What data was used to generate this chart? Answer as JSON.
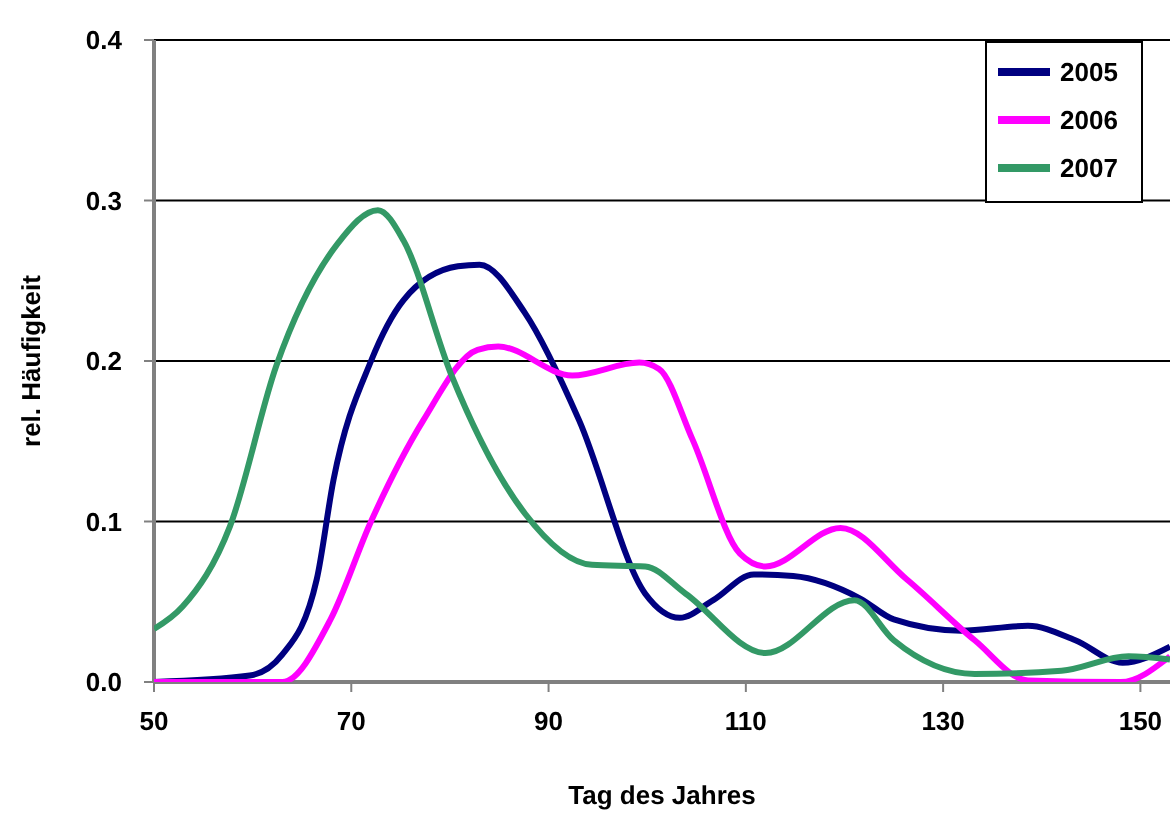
{
  "chart_data": {
    "type": "line",
    "xlabel": "Tag des Jahres",
    "ylabel": "rel. Häufigkeit",
    "xlim": [
      50,
      153
    ],
    "xticks": [
      50,
      70,
      90,
      110,
      130,
      150
    ],
    "ylim": [
      0,
      0.4
    ],
    "yticks": [
      {
        "value": 0,
        "label": "0.0"
      },
      {
        "value": 0.1,
        "label": "0.1"
      },
      {
        "value": 0.2,
        "label": "0.2"
      },
      {
        "value": 0.3,
        "label": "0.3"
      },
      {
        "value": 0.4,
        "label": "0.4"
      }
    ],
    "grid": "y",
    "legend": "top right",
    "marker": "none",
    "line_style": "solid",
    "series": [
      {
        "name": "2005",
        "color": "#000080",
        "x": [
          50,
          59.7,
          63,
          66.5,
          68.2,
          72,
          75.3,
          80.8,
          83,
          87.6,
          93.1,
          99.8,
          103.3,
          106.7,
          110.8,
          114.8,
          121.6,
          125,
          131.8,
          138.6,
          143.4,
          148.2,
          153
        ],
        "values": [
          0,
          0.004,
          0.017,
          0.064,
          0.126,
          0.2,
          0.238,
          0.259,
          0.26,
          0.23,
          0.163,
          0.055,
          0.04,
          0.051,
          0.067,
          0.066,
          0.052,
          0.039,
          0.032,
          0.035,
          0.026,
          0.012,
          0.022
        ]
      },
      {
        "name": "2006",
        "color": "#ff00ff",
        "x": [
          50,
          63,
          67.9,
          72,
          77.3,
          82.8,
          84.9,
          92.4,
          99.2,
          101.2,
          104.6,
          109.4,
          112,
          119.6,
          126.3,
          133.2,
          138.6,
          148,
          153
        ],
        "values": [
          0,
          0,
          0.039,
          0.1,
          0.163,
          0.207,
          0.209,
          0.191,
          0.199,
          0.195,
          0.151,
          0.08,
          0.072,
          0.096,
          0.064,
          0.026,
          0.001,
          0,
          0.016
        ]
      },
      {
        "name": "2007",
        "color": "#339966",
        "x": [
          50,
          52.9,
          57.7,
          62.4,
          68.6,
          72.7,
          75.3,
          80.1,
          87.6,
          94.4,
          99.8,
          103.9,
          112,
          121,
          125,
          133.2,
          142,
          148.8,
          153
        ],
        "values": [
          0.033,
          0.047,
          0.097,
          0.197,
          0.273,
          0.294,
          0.275,
          0.192,
          0.105,
          0.073,
          0.072,
          0.055,
          0.018,
          0.051,
          0.026,
          0.005,
          0.007,
          0.016,
          0.014
        ]
      }
    ]
  }
}
